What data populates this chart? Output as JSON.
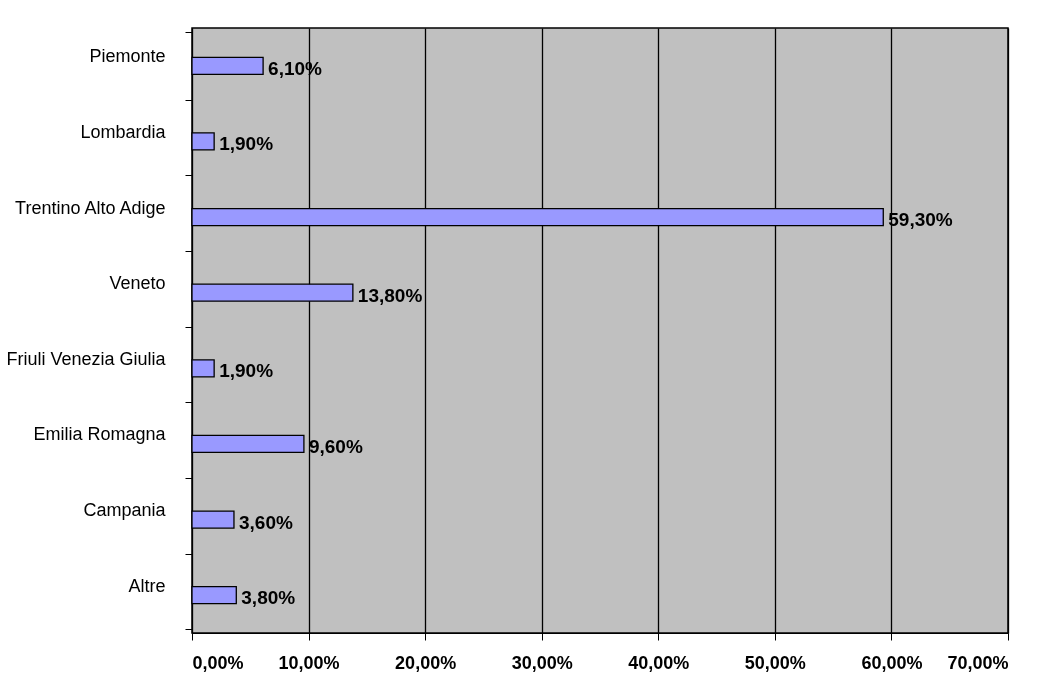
{
  "chart_data": {
    "type": "bar",
    "orientation": "horizontal",
    "categories": [
      "Piemonte",
      "Lombardia",
      "Trentino Alto Adige",
      "Veneto",
      "Friuli Venezia Giulia",
      "Emilia Romagna",
      "Campania",
      "Altre"
    ],
    "values": [
      6.1,
      1.9,
      59.3,
      13.8,
      1.9,
      9.6,
      3.6,
      3.8
    ],
    "value_labels": [
      "6,10%",
      "1,90%",
      "59,30%",
      "13,80%",
      "1,90%",
      "9,60%",
      "3,60%",
      "3,80%"
    ],
    "color": "#9999ff",
    "xlim": [
      0,
      70
    ],
    "xticks": [
      {
        "value": 0,
        "label": "0,00%"
      },
      {
        "value": 10,
        "label": "10,00%"
      },
      {
        "value": 20,
        "label": "20,00%"
      },
      {
        "value": 30,
        "label": "30,00%"
      },
      {
        "value": 40,
        "label": "40,00%"
      },
      {
        "value": 50,
        "label": "50,00%"
      },
      {
        "value": 60,
        "label": "60,00%"
      },
      {
        "value": 70,
        "label": "70,00%"
      }
    ],
    "grid": "x"
  }
}
